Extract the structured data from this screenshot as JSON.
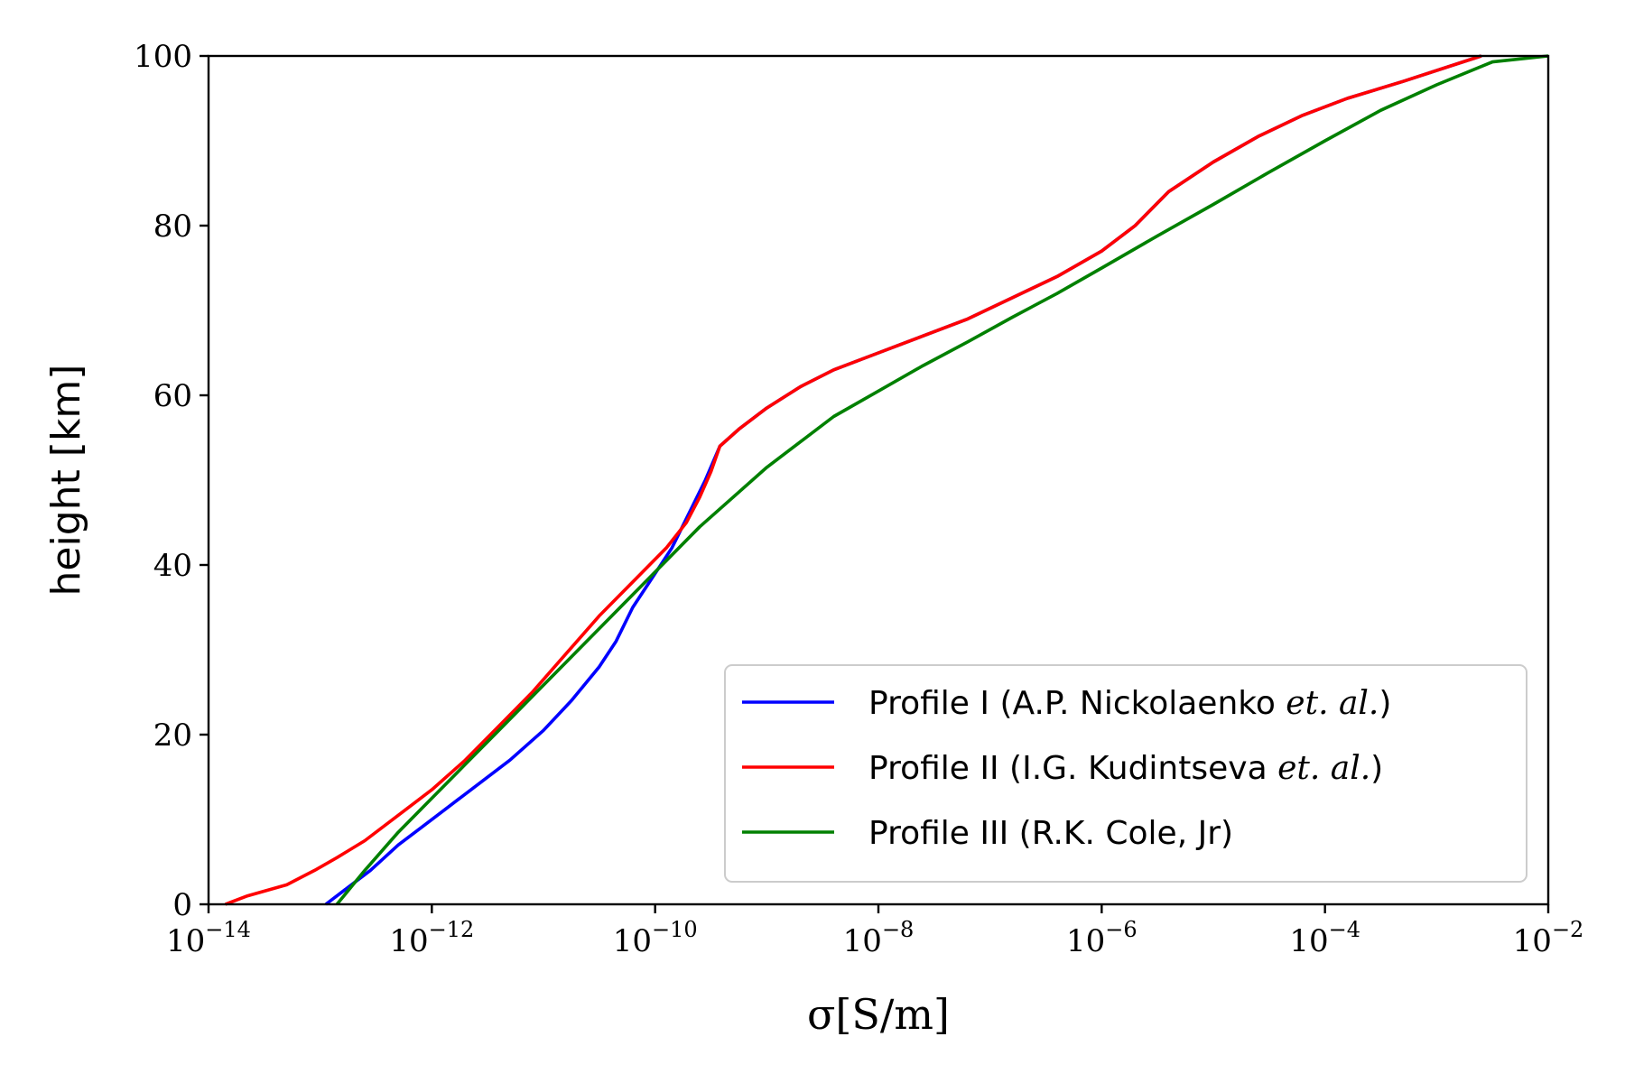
{
  "chart_data": {
    "type": "line",
    "title": "",
    "xlabel": "σ[S/m]",
    "ylabel": "height [km]",
    "xscale": "log",
    "xlim_exp": [
      -14,
      -2
    ],
    "ylim": [
      0,
      100
    ],
    "x_ticks": [
      {
        "base": "10",
        "exp": "−14"
      },
      {
        "base": "10",
        "exp": "−12"
      },
      {
        "base": "10",
        "exp": "−10"
      },
      {
        "base": "10",
        "exp": "−8"
      },
      {
        "base": "10",
        "exp": "−6"
      },
      {
        "base": "10",
        "exp": "−4"
      },
      {
        "base": "10",
        "exp": "−2"
      }
    ],
    "y_ticks": [
      "0",
      "20",
      "40",
      "60",
      "80",
      "100"
    ],
    "legend_position": "lower-right",
    "series": [
      {
        "name": "Profile I",
        "legend_main": "Profile I (A.P. Nickolaenko ",
        "legend_ital": "et. al.",
        "legend_end": ")",
        "color": "#0000ff",
        "points_log10x": [
          [
            -12.95,
            0
          ],
          [
            -12.75,
            2
          ],
          [
            -12.55,
            4
          ],
          [
            -12.3,
            7
          ],
          [
            -12.1,
            9
          ],
          [
            -11.85,
            11.5
          ],
          [
            -11.6,
            14
          ],
          [
            -11.3,
            17
          ],
          [
            -11.0,
            20.5
          ],
          [
            -10.75,
            24
          ],
          [
            -10.5,
            28
          ],
          [
            -10.35,
            31
          ],
          [
            -10.2,
            35
          ],
          [
            -10.0,
            39
          ],
          [
            -9.85,
            42
          ],
          [
            -9.7,
            46
          ],
          [
            -9.55,
            50
          ],
          [
            -9.42,
            54
          ],
          [
            -9.25,
            56
          ],
          [
            -9.0,
            58.5
          ],
          [
            -8.7,
            61
          ],
          [
            -8.4,
            63
          ],
          [
            -8.0,
            65
          ],
          [
            -7.6,
            67
          ],
          [
            -7.2,
            69
          ],
          [
            -6.8,
            71.5
          ],
          [
            -6.4,
            74
          ],
          [
            -6.0,
            77
          ],
          [
            -5.7,
            80
          ],
          [
            -5.4,
            84
          ],
          [
            -5.0,
            87.5
          ],
          [
            -4.6,
            90.5
          ],
          [
            -4.2,
            93
          ],
          [
            -3.8,
            95
          ],
          [
            -3.3,
            97
          ],
          [
            -2.6,
            100
          ]
        ]
      },
      {
        "name": "Profile II",
        "legend_main": "Profile II (I.G. Kudintseva ",
        "legend_ital": "et. al.",
        "legend_end": ")",
        "color": "#ff0000",
        "points_log10x": [
          [
            -13.85,
            0
          ],
          [
            -13.65,
            1
          ],
          [
            -13.3,
            2.3
          ],
          [
            -13.05,
            4
          ],
          [
            -12.85,
            5.5
          ],
          [
            -12.6,
            7.5
          ],
          [
            -12.3,
            10.5
          ],
          [
            -12.0,
            13.5
          ],
          [
            -11.7,
            17
          ],
          [
            -11.4,
            21
          ],
          [
            -11.1,
            25
          ],
          [
            -10.8,
            29.5
          ],
          [
            -10.5,
            34
          ],
          [
            -10.2,
            38
          ],
          [
            -9.9,
            42
          ],
          [
            -9.72,
            45
          ],
          [
            -9.6,
            48
          ],
          [
            -9.5,
            51
          ],
          [
            -9.42,
            54
          ],
          [
            -9.25,
            56
          ],
          [
            -9.0,
            58.5
          ],
          [
            -8.7,
            61
          ],
          [
            -8.4,
            63
          ],
          [
            -8.0,
            65
          ],
          [
            -7.6,
            67
          ],
          [
            -7.2,
            69
          ],
          [
            -6.8,
            71.5
          ],
          [
            -6.4,
            74
          ],
          [
            -6.0,
            77
          ],
          [
            -5.7,
            80
          ],
          [
            -5.4,
            84
          ],
          [
            -5.0,
            87.5
          ],
          [
            -4.6,
            90.5
          ],
          [
            -4.2,
            93
          ],
          [
            -3.8,
            95
          ],
          [
            -3.3,
            97
          ],
          [
            -2.6,
            100
          ]
        ]
      },
      {
        "name": "Profile III",
        "legend_main": "Profile III (R.K. Cole, Jr)",
        "legend_ital": "",
        "legend_end": "",
        "color": "#008000",
        "points_log10x": [
          [
            -12.85,
            0
          ],
          [
            -12.6,
            4
          ],
          [
            -12.3,
            8.5
          ],
          [
            -12.0,
            12.5
          ],
          [
            -11.7,
            16.5
          ],
          [
            -11.4,
            20.5
          ],
          [
            -11.1,
            24.5
          ],
          [
            -10.8,
            28.5
          ],
          [
            -10.5,
            32.5
          ],
          [
            -10.2,
            36.5
          ],
          [
            -9.9,
            40.5
          ],
          [
            -9.6,
            44.5
          ],
          [
            -9.3,
            48
          ],
          [
            -9.0,
            51.5
          ],
          [
            -8.7,
            54.5
          ],
          [
            -8.4,
            57.5
          ],
          [
            -8.0,
            60.5
          ],
          [
            -7.6,
            63.5
          ],
          [
            -7.2,
            66.3
          ],
          [
            -6.8,
            69.2
          ],
          [
            -6.4,
            72
          ],
          [
            -6.0,
            75
          ],
          [
            -5.5,
            78.8
          ],
          [
            -5.0,
            82.5
          ],
          [
            -4.5,
            86.3
          ],
          [
            -4.0,
            90
          ],
          [
            -3.5,
            93.6
          ],
          [
            -3.0,
            96.6
          ],
          [
            -2.5,
            99.3
          ],
          [
            -2.0,
            100
          ]
        ]
      }
    ]
  }
}
